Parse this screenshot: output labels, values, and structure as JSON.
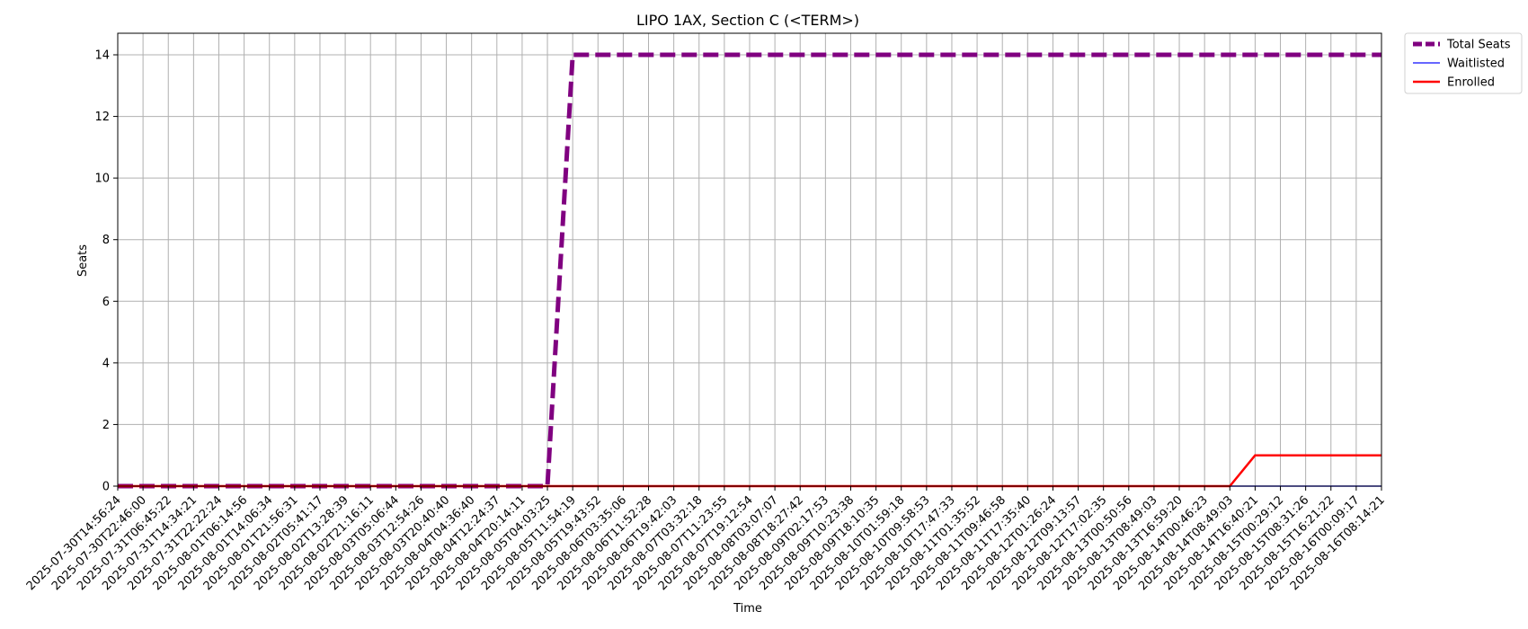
{
  "chart_data": {
    "type": "line",
    "title": "LIPO 1AX, Section C (<TERM>)",
    "xlabel": "Time",
    "ylabel": "Seats",
    "ylim": [
      0,
      14.7
    ],
    "yticks": [
      0,
      2,
      4,
      6,
      8,
      10,
      12,
      14
    ],
    "grid": true,
    "legend_position": "outside-top-right",
    "x": [
      "2025-07-30T14:56:24",
      "2025-07-30T22:46:00",
      "2025-07-31T06:45:22",
      "2025-07-31T14:34:21",
      "2025-07-31T22:22:24",
      "2025-08-01T06:14:56",
      "2025-08-01T14:06:34",
      "2025-08-01T21:56:31",
      "2025-08-02T05:41:17",
      "2025-08-02T13:28:39",
      "2025-08-02T21:16:11",
      "2025-08-03T05:06:44",
      "2025-08-03T12:54:26",
      "2025-08-03T20:40:40",
      "2025-08-04T04:36:40",
      "2025-08-04T12:24:37",
      "2025-08-04T20:14:11",
      "2025-08-05T04:03:25",
      "2025-08-05T11:54:19",
      "2025-08-05T19:43:52",
      "2025-08-06T03:35:06",
      "2025-08-06T11:52:28",
      "2025-08-06T19:42:03",
      "2025-08-07T03:32:18",
      "2025-08-07T11:23:55",
      "2025-08-07T19:12:54",
      "2025-08-08T03:07:07",
      "2025-08-08T18:27:42",
      "2025-08-09T02:17:53",
      "2025-08-09T10:23:38",
      "2025-08-09T18:10:35",
      "2025-08-10T01:59:18",
      "2025-08-10T09:58:53",
      "2025-08-10T17:47:33",
      "2025-08-11T01:35:52",
      "2025-08-11T09:46:58",
      "2025-08-11T17:35:40",
      "2025-08-12T01:26:24",
      "2025-08-12T09:13:57",
      "2025-08-12T17:02:35",
      "2025-08-13T00:50:56",
      "2025-08-13T08:49:03",
      "2025-08-13T16:59:20",
      "2025-08-14T00:46:23",
      "2025-08-14T08:49:03",
      "2025-08-14T16:40:21",
      "2025-08-15T00:29:12",
      "2025-08-15T08:31:26",
      "2025-08-15T16:21:22",
      "2025-08-16T00:09:17",
      "2025-08-16T08:14:21"
    ],
    "series": [
      {
        "name": "Total Seats",
        "color": "#800080",
        "style": "dashed",
        "values": [
          0,
          0,
          0,
          0,
          0,
          0,
          0,
          0,
          0,
          0,
          0,
          0,
          0,
          0,
          0,
          0,
          0,
          0,
          14,
          14,
          14,
          14,
          14,
          14,
          14,
          14,
          14,
          14,
          14,
          14,
          14,
          14,
          14,
          14,
          14,
          14,
          14,
          14,
          14,
          14,
          14,
          14,
          14,
          14,
          14,
          14,
          14,
          14,
          14,
          14,
          14
        ]
      },
      {
        "name": "Waitlisted",
        "color": "#3333ff",
        "style": "solid",
        "values": [
          0,
          0,
          0,
          0,
          0,
          0,
          0,
          0,
          0,
          0,
          0,
          0,
          0,
          0,
          0,
          0,
          0,
          0,
          0,
          0,
          0,
          0,
          0,
          0,
          0,
          0,
          0,
          0,
          0,
          0,
          0,
          0,
          0,
          0,
          0,
          0,
          0,
          0,
          0,
          0,
          0,
          0,
          0,
          0,
          0,
          0,
          0,
          0,
          0,
          0,
          0
        ]
      },
      {
        "name": "Enrolled",
        "color": "#ff0000",
        "style": "solid",
        "values": [
          0,
          0,
          0,
          0,
          0,
          0,
          0,
          0,
          0,
          0,
          0,
          0,
          0,
          0,
          0,
          0,
          0,
          0,
          0,
          0,
          0,
          0,
          0,
          0,
          0,
          0,
          0,
          0,
          0,
          0,
          0,
          0,
          0,
          0,
          0,
          0,
          0,
          0,
          0,
          0,
          0,
          0,
          0,
          0,
          0,
          1,
          1,
          1,
          1,
          1,
          1
        ]
      }
    ]
  }
}
